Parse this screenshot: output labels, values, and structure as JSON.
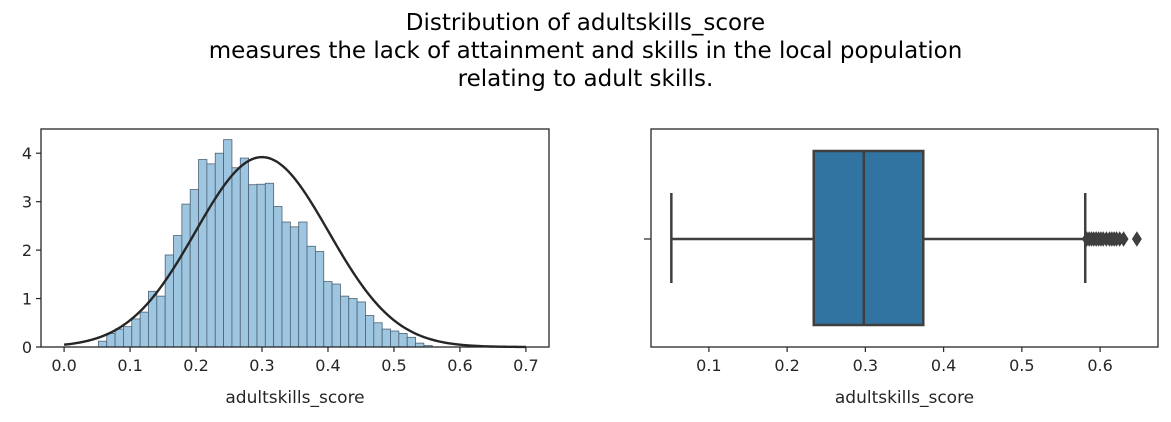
{
  "title_lines": [
    "Distribution of adultskills_score",
    "measures the lack of attainment and skills in the local population",
    "relating to adult skills."
  ],
  "colors": {
    "hist_fill": "#9ec6e0",
    "hist_edge": "#4d6273",
    "kde_line": "#262626",
    "box_fill": "#3274a1",
    "box_line": "#3f3f3f",
    "axis": "#262626"
  },
  "chart_data": [
    {
      "type": "histogram",
      "xlabel": "adultskills_score",
      "ylabel": "",
      "xlim": [
        -0.035,
        0.735
      ],
      "ylim": [
        0,
        4.5
      ],
      "x_ticks": [
        0.0,
        0.1,
        0.2,
        0.3,
        0.4,
        0.5,
        0.6,
        0.7
      ],
      "x_tick_labels": [
        "0.0",
        "0.1",
        "0.2",
        "0.3",
        "0.4",
        "0.5",
        "0.6",
        "0.7"
      ],
      "y_ticks": [
        0,
        1,
        2,
        3,
        4
      ],
      "y_tick_labels": [
        "0",
        "1",
        "2",
        "3",
        "4"
      ],
      "bin_start": 0.052,
      "bin_width": 0.01265,
      "values": [
        0.12,
        0.28,
        0.37,
        0.42,
        0.58,
        0.72,
        1.15,
        1.05,
        1.9,
        2.3,
        2.95,
        3.25,
        3.87,
        3.78,
        4.0,
        4.28,
        3.7,
        3.9,
        3.35,
        3.36,
        3.38,
        2.9,
        2.58,
        2.48,
        2.58,
        2.08,
        1.97,
        1.35,
        1.3,
        1.05,
        1.0,
        0.93,
        0.65,
        0.5,
        0.37,
        0.33,
        0.28,
        0.2,
        0.08,
        0.03
      ],
      "fit_curve": {
        "distribution": "normal",
        "mean": 0.3,
        "std": 0.101,
        "peak": 3.92,
        "x_range": [
          0.0,
          0.7
        ]
      },
      "grid": false
    },
    {
      "type": "boxplot",
      "orientation": "horizontal",
      "xlabel": "adultskills_score",
      "xlim": [
        0.026,
        0.674
      ],
      "x_ticks": [
        0.1,
        0.2,
        0.3,
        0.4,
        0.5,
        0.6
      ],
      "x_tick_labels": [
        "0.1",
        "0.2",
        "0.3",
        "0.4",
        "0.5",
        "0.6"
      ],
      "whisker_low": 0.052,
      "q1": 0.234,
      "median": 0.298,
      "q3": 0.374,
      "whisker_high": 0.581,
      "outliers": [
        0.583,
        0.586,
        0.589,
        0.592,
        0.595,
        0.598,
        0.601,
        0.604,
        0.608,
        0.612,
        0.615,
        0.618,
        0.621,
        0.625,
        0.63,
        0.647
      ],
      "grid": false
    }
  ]
}
